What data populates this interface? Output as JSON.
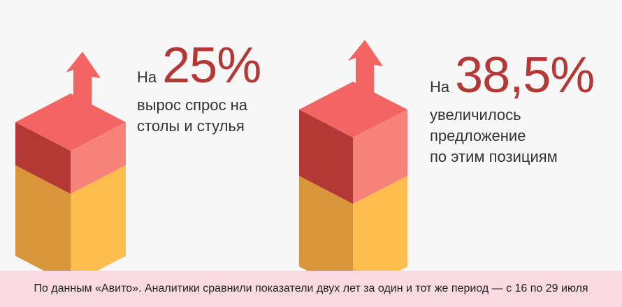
{
  "chart_data": {
    "type": "bar",
    "categories": [
      "спрос на столы и стулья",
      "предложение по этим позициям"
    ],
    "values": [
      25,
      38.5
    ],
    "unit": "%"
  },
  "stats": [
    {
      "prefix": "На",
      "value": "25%",
      "desc_lines": [
        "вырос спрос на",
        "столы и стулья"
      ]
    },
    {
      "prefix": "На",
      "value": "38,5%",
      "desc_lines": [
        "увеличилось",
        "предложение",
        "по этим позициям"
      ]
    }
  ],
  "footer": {
    "text": "По данным «Авито». Аналитики сравнили показатели двух лет за один и тот же период — с 16 по 29 июля"
  },
  "colors": {
    "value_text": "#b33836",
    "red_left": "#b33836",
    "red_right": "#f7827a",
    "red_top": "#f26563",
    "yellow_left": "#d9953a",
    "yellow_right": "#fdbe4f",
    "footer_bg": "#f9d9e2",
    "background": "#f7f7f7"
  }
}
